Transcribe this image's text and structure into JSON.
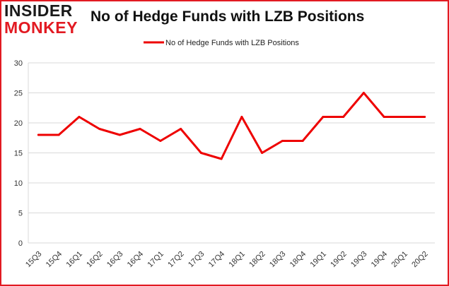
{
  "logo": {
    "top": "INSIDER",
    "bottom": "MONKEY"
  },
  "chart_data": {
    "type": "line",
    "title": "No of Hedge Funds with LZB Positions",
    "xlabel": "",
    "ylabel": "",
    "categories": [
      "15Q3",
      "15Q4",
      "16Q1",
      "16Q2",
      "16Q3",
      "16Q4",
      "17Q1",
      "17Q2",
      "17Q3",
      "17Q4",
      "18Q1",
      "18Q2",
      "18Q3",
      "18Q4",
      "19Q1",
      "19Q2",
      "19Q3",
      "19Q4",
      "20Q1",
      "20Q2"
    ],
    "series": [
      {
        "name": "No of Hedge Funds with LZB Positions",
        "values": [
          18,
          18,
          21,
          19,
          18,
          19,
          17,
          19,
          15,
          14,
          21,
          15,
          17,
          17,
          21,
          21,
          25,
          21,
          21,
          21
        ],
        "color": "#ee0000"
      }
    ],
    "ylim": [
      0,
      30
    ],
    "yticks": [
      0,
      5,
      10,
      15,
      20,
      25,
      30
    ],
    "grid": true,
    "legend_position": "top-center",
    "border_color": "#e21a22"
  }
}
